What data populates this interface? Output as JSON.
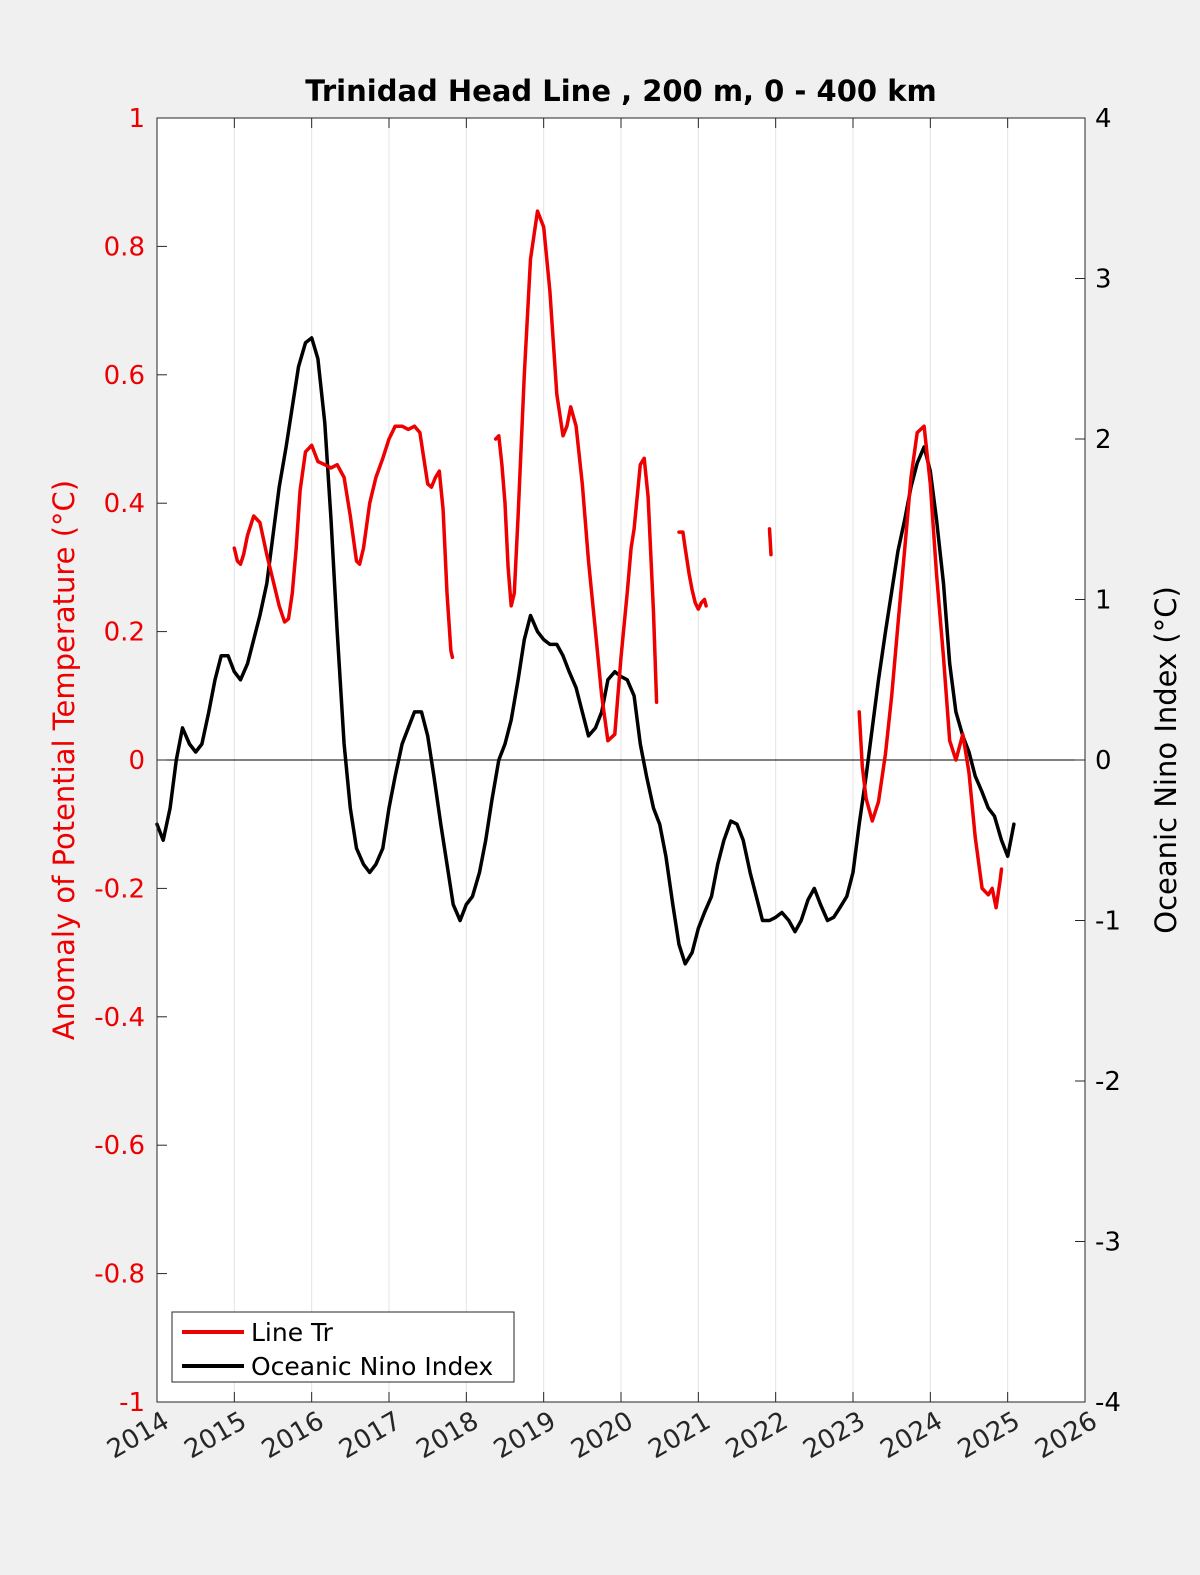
{
  "chart_data": {
    "type": "line",
    "title": "Trinidad Head Line , 200 m, 0 - 400 km",
    "xlabel": "",
    "ylabel_left": "Anomaly of Potential Temperature (°C)",
    "ylabel_right": "Oceanic Nino Index (°C)",
    "xlim": [
      2014,
      2026
    ],
    "ylim_left": [
      -1,
      1
    ],
    "ylim_right": [
      -4,
      4
    ],
    "x_ticks": [
      "2014",
      "2015",
      "2016",
      "2017",
      "2018",
      "2019",
      "2020",
      "2021",
      "2022",
      "2023",
      "2024",
      "2025",
      "2026"
    ],
    "y_ticks_left": [
      "-1",
      "-0.8",
      "-0.6",
      "-0.4",
      "-0.2",
      "0",
      "0.2",
      "0.4",
      "0.6",
      "0.8",
      "1"
    ],
    "y_ticks_right": [
      "-4",
      "-3",
      "-2",
      "-1",
      "0",
      "1",
      "2",
      "3",
      "4"
    ],
    "grid": "vertical",
    "legend_position": "bottom-left",
    "colors": {
      "line_tr": "#ee0000",
      "oni": "#000000",
      "left_axis": "#ee0000",
      "right_axis": "#000000"
    },
    "series": [
      {
        "name": "Line Tr",
        "axis": "left",
        "segments": [
          [
            [
              2015.0,
              0.33
            ],
            [
              2015.04,
              0.31
            ],
            [
              2015.08,
              0.305
            ],
            [
              2015.12,
              0.32
            ],
            [
              2015.17,
              0.35
            ],
            [
              2015.25,
              0.38
            ],
            [
              2015.33,
              0.37
            ],
            [
              2015.42,
              0.32
            ],
            [
              2015.5,
              0.28
            ],
            [
              2015.58,
              0.24
            ],
            [
              2015.65,
              0.215
            ],
            [
              2015.7,
              0.22
            ],
            [
              2015.75,
              0.26
            ],
            [
              2015.8,
              0.33
            ],
            [
              2015.85,
              0.42
            ],
            [
              2015.92,
              0.48
            ],
            [
              2016.0,
              0.49
            ],
            [
              2016.08,
              0.465
            ],
            [
              2016.17,
              0.46
            ],
            [
              2016.25,
              0.455
            ],
            [
              2016.33,
              0.46
            ],
            [
              2016.42,
              0.44
            ],
            [
              2016.5,
              0.38
            ],
            [
              2016.58,
              0.31
            ],
            [
              2016.62,
              0.305
            ],
            [
              2016.67,
              0.33
            ],
            [
              2016.75,
              0.4
            ],
            [
              2016.83,
              0.44
            ],
            [
              2016.92,
              0.47
            ],
            [
              2017.0,
              0.5
            ],
            [
              2017.08,
              0.52
            ],
            [
              2017.17,
              0.52
            ],
            [
              2017.25,
              0.515
            ],
            [
              2017.33,
              0.52
            ],
            [
              2017.4,
              0.51
            ],
            [
              2017.45,
              0.47
            ],
            [
              2017.5,
              0.43
            ],
            [
              2017.55,
              0.425
            ],
            [
              2017.6,
              0.44
            ],
            [
              2017.65,
              0.45
            ],
            [
              2017.7,
              0.39
            ],
            [
              2017.75,
              0.26
            ],
            [
              2017.8,
              0.17
            ],
            [
              2017.82,
              0.16
            ]
          ],
          [
            [
              2018.38,
              0.5
            ],
            [
              2018.42,
              0.505
            ],
            [
              2018.46,
              0.46
            ],
            [
              2018.5,
              0.4
            ],
            [
              2018.54,
              0.3
            ],
            [
              2018.58,
              0.24
            ],
            [
              2018.62,
              0.26
            ],
            [
              2018.67,
              0.38
            ],
            [
              2018.75,
              0.6
            ],
            [
              2018.83,
              0.78
            ],
            [
              2018.92,
              0.855
            ],
            [
              2019.0,
              0.83
            ],
            [
              2019.08,
              0.73
            ],
            [
              2019.17,
              0.57
            ],
            [
              2019.25,
              0.505
            ],
            [
              2019.3,
              0.52
            ],
            [
              2019.35,
              0.55
            ],
            [
              2019.42,
              0.52
            ],
            [
              2019.5,
              0.43
            ],
            [
              2019.58,
              0.31
            ],
            [
              2019.67,
              0.2
            ],
            [
              2019.75,
              0.1
            ],
            [
              2019.83,
              0.03
            ],
            [
              2019.92,
              0.04
            ],
            [
              2020.0,
              0.16
            ],
            [
              2020.08,
              0.26
            ],
            [
              2020.13,
              0.33
            ],
            [
              2020.17,
              0.36
            ],
            [
              2020.25,
              0.46
            ],
            [
              2020.3,
              0.47
            ],
            [
              2020.35,
              0.41
            ],
            [
              2020.42,
              0.23
            ],
            [
              2020.46,
              0.09
            ]
          ],
          [
            [
              2020.75,
              0.355
            ],
            [
              2020.8,
              0.355
            ],
            [
              2020.83,
              0.33
            ],
            [
              2020.88,
              0.29
            ],
            [
              2020.92,
              0.265
            ],
            [
              2020.96,
              0.245
            ],
            [
              2021.0,
              0.235
            ],
            [
              2021.04,
              0.245
            ],
            [
              2021.08,
              0.25
            ],
            [
              2021.1,
              0.24
            ]
          ],
          [
            [
              2021.92,
              0.36
            ],
            [
              2021.94,
              0.32
            ]
          ],
          [
            [
              2023.08,
              0.075
            ],
            [
              2023.12,
              -0.01
            ],
            [
              2023.17,
              -0.06
            ],
            [
              2023.25,
              -0.095
            ],
            [
              2023.33,
              -0.065
            ],
            [
              2023.42,
              0.01
            ],
            [
              2023.5,
              0.1
            ],
            [
              2023.58,
              0.21
            ],
            [
              2023.67,
              0.33
            ],
            [
              2023.75,
              0.44
            ],
            [
              2023.83,
              0.51
            ],
            [
              2023.92,
              0.52
            ],
            [
              2024.0,
              0.43
            ],
            [
              2024.08,
              0.29
            ],
            [
              2024.17,
              0.16
            ],
            [
              2024.25,
              0.03
            ],
            [
              2024.33,
              0.0
            ],
            [
              2024.42,
              0.04
            ],
            [
              2024.5,
              -0.02
            ],
            [
              2024.58,
              -0.12
            ],
            [
              2024.67,
              -0.2
            ],
            [
              2024.75,
              -0.21
            ],
            [
              2024.8,
              -0.2
            ],
            [
              2024.85,
              -0.23
            ],
            [
              2024.9,
              -0.19
            ],
            [
              2024.92,
              -0.17
            ]
          ]
        ]
      },
      {
        "name": "Oceanic Nino Index",
        "axis": "right",
        "points": [
          [
            2014.0,
            -0.4
          ],
          [
            2014.08,
            -0.5
          ],
          [
            2014.17,
            -0.3
          ],
          [
            2014.25,
            0.0
          ],
          [
            2014.33,
            0.2
          ],
          [
            2014.42,
            0.1
          ],
          [
            2014.5,
            0.05
          ],
          [
            2014.58,
            0.1
          ],
          [
            2014.67,
            0.3
          ],
          [
            2014.75,
            0.5
          ],
          [
            2014.83,
            0.65
          ],
          [
            2014.92,
            0.65
          ],
          [
            2015.0,
            0.55
          ],
          [
            2015.08,
            0.5
          ],
          [
            2015.17,
            0.6
          ],
          [
            2015.25,
            0.75
          ],
          [
            2015.33,
            0.9
          ],
          [
            2015.42,
            1.1
          ],
          [
            2015.5,
            1.4
          ],
          [
            2015.58,
            1.7
          ],
          [
            2015.67,
            1.95
          ],
          [
            2015.75,
            2.2
          ],
          [
            2015.83,
            2.45
          ],
          [
            2015.92,
            2.6
          ],
          [
            2016.0,
            2.63
          ],
          [
            2016.08,
            2.5
          ],
          [
            2016.17,
            2.1
          ],
          [
            2016.25,
            1.5
          ],
          [
            2016.33,
            0.8
          ],
          [
            2016.42,
            0.1
          ],
          [
            2016.5,
            -0.3
          ],
          [
            2016.58,
            -0.55
          ],
          [
            2016.67,
            -0.65
          ],
          [
            2016.75,
            -0.7
          ],
          [
            2016.83,
            -0.65
          ],
          [
            2016.92,
            -0.55
          ],
          [
            2017.0,
            -0.3
          ],
          [
            2017.08,
            -0.1
          ],
          [
            2017.17,
            0.1
          ],
          [
            2017.25,
            0.2
          ],
          [
            2017.33,
            0.3
          ],
          [
            2017.42,
            0.3
          ],
          [
            2017.5,
            0.15
          ],
          [
            2017.58,
            -0.1
          ],
          [
            2017.67,
            -0.4
          ],
          [
            2017.75,
            -0.65
          ],
          [
            2017.83,
            -0.9
          ],
          [
            2017.92,
            -1.0
          ],
          [
            2018.0,
            -0.9
          ],
          [
            2018.08,
            -0.85
          ],
          [
            2018.17,
            -0.7
          ],
          [
            2018.25,
            -0.5
          ],
          [
            2018.33,
            -0.25
          ],
          [
            2018.42,
            0.0
          ],
          [
            2018.5,
            0.1
          ],
          [
            2018.58,
            0.25
          ],
          [
            2018.67,
            0.5
          ],
          [
            2018.75,
            0.75
          ],
          [
            2018.83,
            0.9
          ],
          [
            2018.92,
            0.8
          ],
          [
            2019.0,
            0.75
          ],
          [
            2019.08,
            0.72
          ],
          [
            2019.17,
            0.72
          ],
          [
            2019.25,
            0.65
          ],
          [
            2019.33,
            0.55
          ],
          [
            2019.42,
            0.45
          ],
          [
            2019.5,
            0.3
          ],
          [
            2019.58,
            0.15
          ],
          [
            2019.67,
            0.2
          ],
          [
            2019.75,
            0.3
          ],
          [
            2019.83,
            0.5
          ],
          [
            2019.92,
            0.55
          ],
          [
            2020.0,
            0.52
          ],
          [
            2020.08,
            0.5
          ],
          [
            2020.17,
            0.4
          ],
          [
            2020.25,
            0.1
          ],
          [
            2020.33,
            -0.1
          ],
          [
            2020.42,
            -0.3
          ],
          [
            2020.5,
            -0.4
          ],
          [
            2020.58,
            -0.6
          ],
          [
            2020.67,
            -0.9
          ],
          [
            2020.75,
            -1.15
          ],
          [
            2020.83,
            -1.27
          ],
          [
            2020.92,
            -1.2
          ],
          [
            2021.0,
            -1.05
          ],
          [
            2021.08,
            -0.95
          ],
          [
            2021.17,
            -0.85
          ],
          [
            2021.25,
            -0.65
          ],
          [
            2021.33,
            -0.5
          ],
          [
            2021.42,
            -0.38
          ],
          [
            2021.5,
            -0.4
          ],
          [
            2021.58,
            -0.5
          ],
          [
            2021.67,
            -0.7
          ],
          [
            2021.75,
            -0.85
          ],
          [
            2021.83,
            -1.0
          ],
          [
            2021.92,
            -1.0
          ],
          [
            2022.0,
            -0.98
          ],
          [
            2022.08,
            -0.95
          ],
          [
            2022.17,
            -1.0
          ],
          [
            2022.25,
            -1.07
          ],
          [
            2022.33,
            -1.0
          ],
          [
            2022.42,
            -0.87
          ],
          [
            2022.5,
            -0.8
          ],
          [
            2022.58,
            -0.9
          ],
          [
            2022.67,
            -1.0
          ],
          [
            2022.75,
            -0.98
          ],
          [
            2022.83,
            -0.92
          ],
          [
            2022.92,
            -0.85
          ],
          [
            2023.0,
            -0.7
          ],
          [
            2023.08,
            -0.4
          ],
          [
            2023.17,
            -0.1
          ],
          [
            2023.25,
            0.2
          ],
          [
            2023.33,
            0.5
          ],
          [
            2023.42,
            0.8
          ],
          [
            2023.5,
            1.05
          ],
          [
            2023.58,
            1.3
          ],
          [
            2023.67,
            1.5
          ],
          [
            2023.75,
            1.7
          ],
          [
            2023.83,
            1.85
          ],
          [
            2023.92,
            1.95
          ],
          [
            2024.0,
            1.8
          ],
          [
            2024.08,
            1.5
          ],
          [
            2024.17,
            1.1
          ],
          [
            2024.25,
            0.6
          ],
          [
            2024.33,
            0.3
          ],
          [
            2024.42,
            0.15
          ],
          [
            2024.5,
            0.05
          ],
          [
            2024.58,
            -0.1
          ],
          [
            2024.67,
            -0.2
          ],
          [
            2024.75,
            -0.3
          ],
          [
            2024.83,
            -0.35
          ],
          [
            2024.92,
            -0.5
          ],
          [
            2025.0,
            -0.6
          ],
          [
            2025.08,
            -0.4
          ]
        ]
      }
    ]
  }
}
